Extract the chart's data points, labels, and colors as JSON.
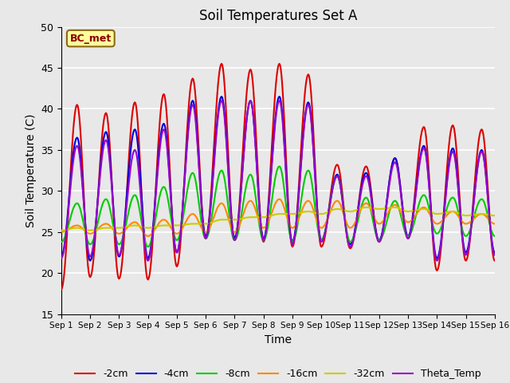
{
  "title": "Soil Temperatures Set A",
  "xlabel": "Time",
  "ylabel": "Soil Temperature (C)",
  "ylim": [
    15,
    50
  ],
  "xlim": [
    0,
    15
  ],
  "annotation": "BC_met",
  "background_color": "#e8e8e8",
  "plot_bg_color": "#e8e8e8",
  "grid_color": "white",
  "x_tick_labels": [
    "Sep 1",
    "Sep 2",
    "Sep 3",
    "Sep 4",
    "Sep 5",
    "Sep 6",
    "Sep 7",
    "Sep 8",
    "Sep 9",
    "Sep 10",
    "Sep 11",
    "Sep 12",
    "Sep 13",
    "Sep 14",
    "Sep 15",
    "Sep 16"
  ],
  "series": {
    "-2cm": {
      "color": "#dd0000",
      "lw": 1.5
    },
    "-4cm": {
      "color": "#0000dd",
      "lw": 1.5
    },
    "-8cm": {
      "color": "#00cc00",
      "lw": 1.5
    },
    "-16cm": {
      "color": "#ff8800",
      "lw": 1.5
    },
    "-32cm": {
      "color": "#cccc00",
      "lw": 1.5
    },
    "Theta_Temp": {
      "color": "#9900cc",
      "lw": 1.5
    }
  },
  "peaks_2cm": [
    40.5,
    39.5,
    40.8,
    41.8,
    43.7,
    45.5,
    44.8,
    45.5,
    44.2,
    33.2,
    33.0,
    34.0,
    37.8,
    38.0,
    37.5
  ],
  "troughs_2cm": [
    18.0,
    19.5,
    19.3,
    19.2,
    20.8,
    24.2,
    24.0,
    23.8,
    23.2,
    23.2,
    23.0,
    23.8,
    24.2,
    20.3,
    21.5
  ],
  "peaks_4cm": [
    36.5,
    37.2,
    37.5,
    38.2,
    41.0,
    41.5,
    41.0,
    41.5,
    40.8,
    32.0,
    32.2,
    34.0,
    35.5,
    35.2,
    35.0
  ],
  "troughs_4cm": [
    22.0,
    21.5,
    22.0,
    21.8,
    22.5,
    24.5,
    24.3,
    24.2,
    23.8,
    24.0,
    23.5,
    24.0,
    24.5,
    21.8,
    22.5
  ],
  "peaks_8cm": [
    28.5,
    29.0,
    29.5,
    30.5,
    32.2,
    32.5,
    32.0,
    33.0,
    32.5,
    31.8,
    29.2,
    28.8,
    29.5,
    29.2,
    29.0
  ],
  "troughs_8cm": [
    23.8,
    23.5,
    23.5,
    23.2,
    24.0,
    24.2,
    24.0,
    24.0,
    23.8,
    24.0,
    23.8,
    24.0,
    24.5,
    24.8,
    24.5
  ],
  "peaks_16cm": [
    25.8,
    26.0,
    26.2,
    26.5,
    27.2,
    28.5,
    28.8,
    29.0,
    28.8,
    28.8,
    28.5,
    28.3,
    28.0,
    27.5,
    27.2
  ],
  "troughs_16cm": [
    25.0,
    24.8,
    24.8,
    24.5,
    24.8,
    25.0,
    25.0,
    25.5,
    25.5,
    25.5,
    25.5,
    26.0,
    26.2,
    26.0,
    26.0
  ],
  "peaks_32cm": [
    25.5,
    25.5,
    25.8,
    25.8,
    26.0,
    26.5,
    26.8,
    27.2,
    27.5,
    27.8,
    28.0,
    28.0,
    27.8,
    27.5,
    27.2
  ],
  "troughs_32cm": [
    25.2,
    25.2,
    25.5,
    25.5,
    25.8,
    26.0,
    26.5,
    26.8,
    27.2,
    27.2,
    27.5,
    27.8,
    27.5,
    27.2,
    27.0
  ],
  "peaks_theta": [
    35.5,
    36.2,
    35.0,
    37.5,
    40.5,
    41.0,
    41.0,
    41.0,
    40.5,
    31.8,
    31.8,
    33.5,
    35.2,
    34.8,
    34.8
  ],
  "troughs_theta": [
    21.8,
    22.0,
    22.2,
    21.5,
    22.5,
    24.2,
    24.0,
    24.0,
    23.5,
    23.8,
    23.2,
    23.8,
    24.2,
    21.5,
    22.2
  ]
}
